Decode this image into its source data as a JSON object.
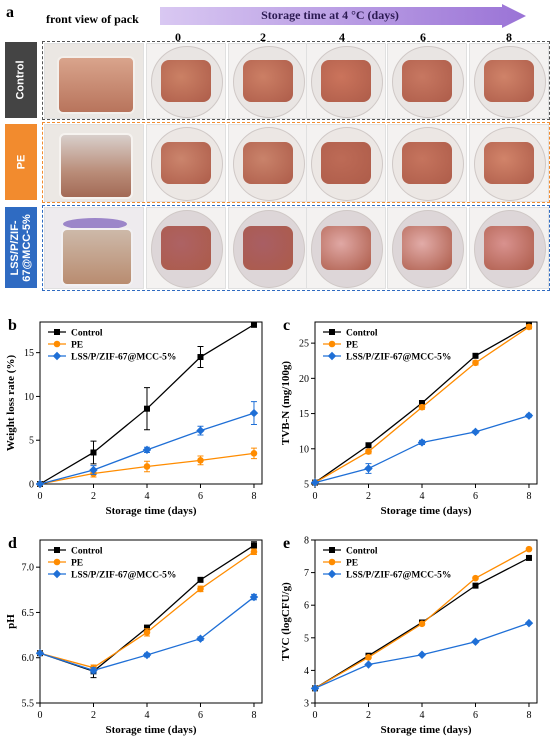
{
  "photo_panel": {
    "letter": "a",
    "front_view_label": "front view of pack",
    "arrow_label": "Storage  time at 4 °C (days)",
    "days": [
      "0",
      "2",
      "4",
      "6",
      "8"
    ],
    "rows": [
      {
        "label": "Control",
        "color": "#444444"
      },
      {
        "label": "PE",
        "color": "#f28b2e"
      },
      {
        "label": "LSS/P/ZIF-\n67@MCC-5%",
        "color": "#2f6bc2"
      }
    ]
  },
  "series_styles": [
    {
      "name": "Control",
      "color": "#000000",
      "marker": "square"
    },
    {
      "name": "PE",
      "color": "#ff8c00",
      "marker": "circle"
    },
    {
      "name": "LSS/P/ZIF-67@MCC-5%",
      "color": "#1f6fd6",
      "marker": "diamond"
    }
  ],
  "chart_data": [
    {
      "letter": "b",
      "type": "line",
      "xlabel": "Storage time (days)",
      "ylabel": "Weight loss rate (%)",
      "x": [
        0,
        2,
        4,
        6,
        8
      ],
      "xlim": [
        0,
        8.3
      ],
      "ylim": [
        0,
        18.5
      ],
      "xticks": [
        "0",
        "2",
        "4",
        "6",
        "8"
      ],
      "yticks": [
        0,
        5,
        10,
        15
      ],
      "legend": "top-left",
      "series": [
        {
          "name": "Control",
          "values": [
            0,
            3.6,
            8.6,
            14.5,
            18.2
          ],
          "err": [
            0,
            1.3,
            2.4,
            1.2,
            0.3
          ]
        },
        {
          "name": "PE",
          "values": [
            0,
            1.2,
            2.0,
            2.7,
            3.5
          ],
          "err": [
            0,
            0.4,
            0.6,
            0.5,
            0.6
          ]
        },
        {
          "name": "LSS/P/ZIF-67@MCC-5%",
          "values": [
            0,
            1.6,
            3.9,
            6.1,
            8.1
          ],
          "err": [
            0,
            0.5,
            0.3,
            0.5,
            1.3
          ]
        }
      ]
    },
    {
      "letter": "c",
      "type": "line",
      "xlabel": "Storage time (days)",
      "ylabel": "TVB-N (mg/100g)",
      "x": [
        0,
        2,
        4,
        6,
        8
      ],
      "xlim": [
        0,
        8.3
      ],
      "ylim": [
        5,
        28
      ],
      "xticks": [
        "0",
        "2",
        "4",
        "6",
        "8"
      ],
      "yticks": [
        5,
        10,
        15,
        20,
        25
      ],
      "legend": "top-left",
      "series": [
        {
          "name": "Control",
          "values": [
            5.2,
            10.5,
            16.5,
            23.2,
            27.5
          ],
          "err": [
            0,
            0.3,
            0.3,
            0.3,
            0.3
          ]
        },
        {
          "name": "PE",
          "values": [
            5.2,
            9.6,
            15.9,
            22.2,
            27.3
          ],
          "err": [
            0,
            0.3,
            0.3,
            0.3,
            0.3
          ]
        },
        {
          "name": "LSS/P/ZIF-67@MCC-5%",
          "values": [
            5.2,
            7.2,
            10.9,
            12.4,
            14.7
          ],
          "err": [
            0,
            0.7,
            0.3,
            0.2,
            0.2
          ]
        }
      ]
    },
    {
      "letter": "d",
      "type": "line",
      "xlabel": "Storage time (days)",
      "ylabel": "pH",
      "x": [
        0,
        2,
        4,
        6,
        8
      ],
      "xlim": [
        0,
        8.3
      ],
      "ylim": [
        5.5,
        7.3
      ],
      "xticks": [
        "0",
        "2",
        "4",
        "6",
        "8"
      ],
      "yticks": [
        5.5,
        6.0,
        6.5,
        7.0
      ],
      "legend": "top-left",
      "series": [
        {
          "name": "Control",
          "values": [
            6.05,
            5.85,
            6.33,
            6.86,
            7.24
          ],
          "err": [
            0,
            0.07,
            0.03,
            0.02,
            0.04
          ]
        },
        {
          "name": "PE",
          "values": [
            6.05,
            5.89,
            6.28,
            6.76,
            7.17
          ],
          "err": [
            0,
            0.03,
            0.04,
            0.03,
            0.03
          ]
        },
        {
          "name": "LSS/P/ZIF-67@MCC-5%",
          "values": [
            6.05,
            5.86,
            6.03,
            6.21,
            6.67
          ],
          "err": [
            0,
            0.03,
            0.02,
            0.02,
            0.03
          ]
        }
      ]
    },
    {
      "letter": "e",
      "type": "line",
      "xlabel": "Storage time (days)",
      "ylabel": "TVC (logCFU/g)",
      "x": [
        0,
        2,
        4,
        6,
        8
      ],
      "xlim": [
        0,
        8.3
      ],
      "ylim": [
        3,
        8
      ],
      "xticks": [
        "0",
        "2",
        "4",
        "6",
        "8"
      ],
      "yticks": [
        3,
        4,
        5,
        6,
        7,
        8
      ],
      "legend": "top-left",
      "series": [
        {
          "name": "Control",
          "values": [
            3.45,
            4.45,
            5.47,
            6.6,
            7.45
          ],
          "err": [
            0,
            0,
            0,
            0,
            0
          ]
        },
        {
          "name": "PE",
          "values": [
            3.45,
            4.4,
            5.43,
            6.83,
            7.72
          ],
          "err": [
            0,
            0,
            0,
            0,
            0
          ]
        },
        {
          "name": "LSS/P/ZIF-67@MCC-5%",
          "values": [
            3.45,
            4.18,
            4.48,
            4.88,
            5.45
          ],
          "err": [
            0,
            0,
            0,
            0,
            0
          ]
        }
      ]
    }
  ]
}
